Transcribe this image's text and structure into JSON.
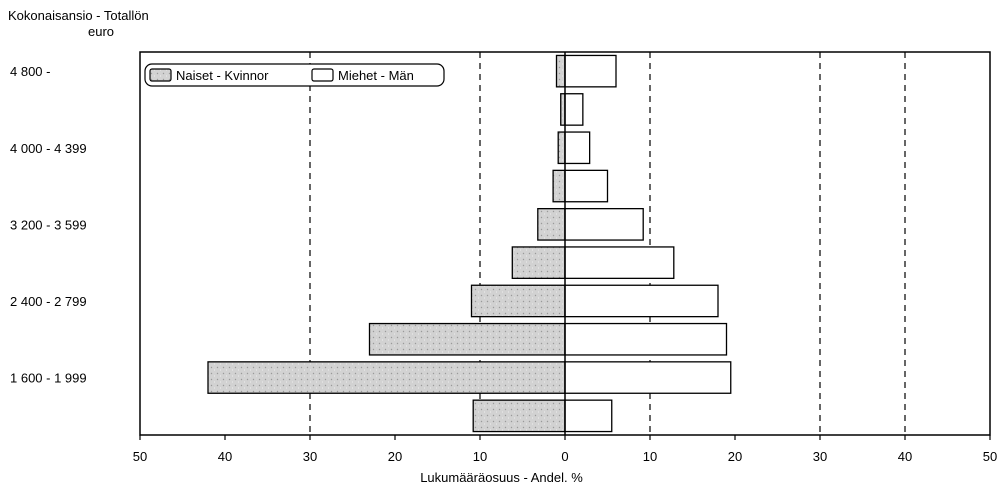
{
  "chart_data": {
    "type": "bar",
    "orientation": "horizontal",
    "layout": "population-pyramid",
    "ylabel_line1": "Kokonaisansio - Totallön",
    "ylabel_line2": "euro",
    "xlabel": "Lukumääräosuus - Andel. %",
    "xlim": [
      -50,
      50
    ],
    "xticks": [
      50,
      40,
      30,
      20,
      10,
      0,
      10,
      20,
      30,
      40,
      50
    ],
    "gridlines_at": [
      -30,
      -10,
      10,
      30,
      40
    ],
    "legend_position": "top-left",
    "categories": [
      "",
      "1 600 - 1 999",
      "",
      "2 400 - 2 799",
      "",
      "3 200 - 3 599",
      "",
      "4 000 - 4 399",
      "",
      "4 800 -"
    ],
    "series": [
      {
        "name": "Naiset - Kvinnor",
        "side": "left",
        "color": "#c8c8c8",
        "values": [
          10.8,
          42,
          23,
          11,
          6.2,
          3.2,
          1.4,
          0.8,
          0.5,
          1.0
        ]
      },
      {
        "name": "Miehet - Män",
        "side": "right",
        "color": "#ffffff",
        "values": [
          5.5,
          19.5,
          19,
          18,
          12.8,
          9.2,
          5,
          2.9,
          2.1,
          6
        ]
      }
    ]
  }
}
